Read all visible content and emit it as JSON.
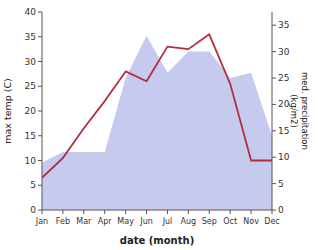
{
  "chart_data": {
    "type": "line",
    "categories": [
      "Jan",
      "Feb",
      "Mar",
      "Apr",
      "May",
      "Jun",
      "Jul",
      "Aug",
      "Sep",
      "Oct",
      "Nov",
      "Dec"
    ],
    "xlabel": "date (month)",
    "ylabel": "max temp (C)",
    "y2label": "med. precipitation\n(kg/m2)",
    "ylim": [
      0,
      40
    ],
    "yticks": [
      0,
      5,
      10,
      15,
      20,
      25,
      30,
      35,
      40
    ],
    "y2lim": [
      0,
      37.5
    ],
    "y2ticks": [
      0,
      5,
      10,
      15,
      20,
      25,
      30,
      35
    ],
    "grid": false,
    "series": [
      {
        "type": "area",
        "color": "#c5caee",
        "axis": "y2",
        "values": [
          9,
          11,
          11,
          11,
          25,
          33,
          26,
          30,
          30,
          25,
          26,
          14
        ]
      },
      {
        "type": "line",
        "color": "#b03040",
        "values": [
          6.5,
          10.5,
          16.5,
          22.0,
          28.0,
          26.0,
          33.0,
          32.5,
          35.5,
          25.5,
          10.0,
          10.0
        ]
      }
    ]
  }
}
